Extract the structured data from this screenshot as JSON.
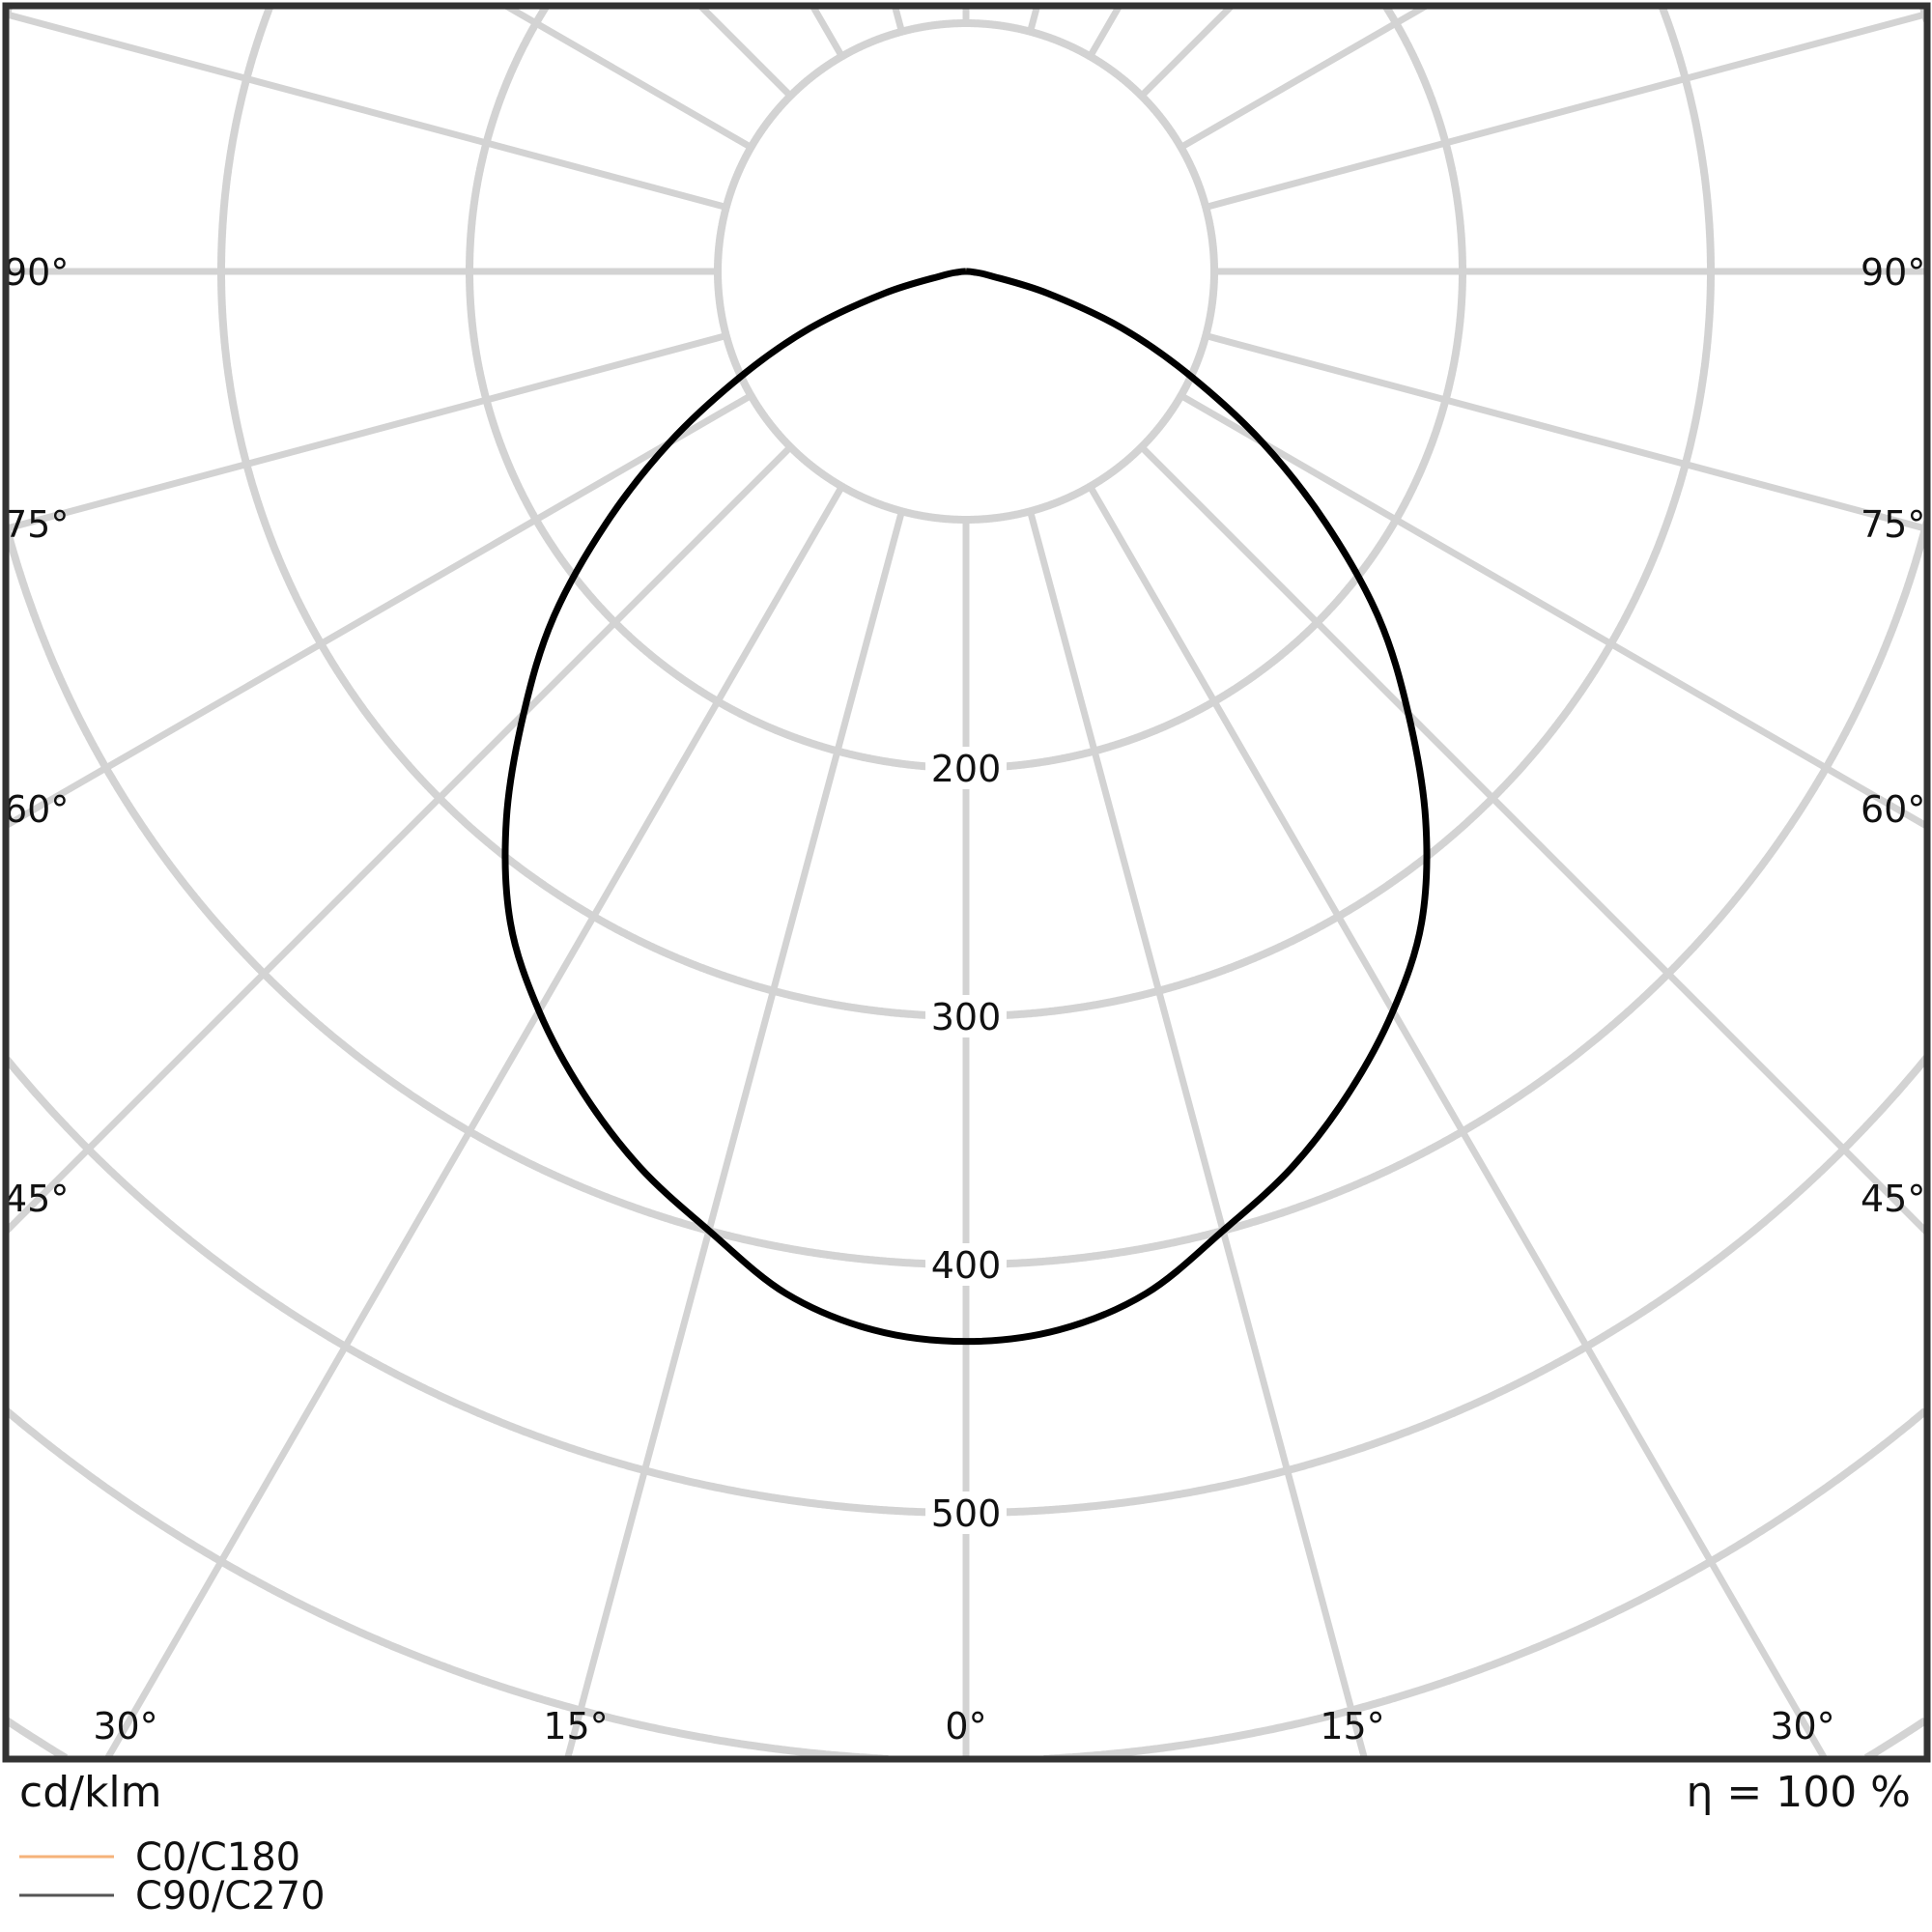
{
  "chart_data": {
    "type": "polar",
    "unit_label": "cd/klm",
    "efficiency_label": "η = 100 %",
    "radial_ticks": [
      100,
      200,
      300,
      400,
      500,
      600,
      700,
      800,
      900
    ],
    "radial_tick_labels": [
      "200",
      "300",
      "400",
      "500"
    ],
    "angle_step_deg": 15,
    "side_angle_labels": [
      "90°",
      "75°",
      "60°",
      "45°"
    ],
    "bottom_angle_labels": [
      "30°",
      "15°",
      "0°",
      "15°",
      "30°"
    ],
    "grid": true,
    "legend_placement": "bottom-left",
    "angles_deg": [
      0,
      5,
      10,
      15,
      20,
      25,
      30,
      35,
      40,
      45,
      50,
      55,
      60,
      65,
      70,
      75,
      80,
      85,
      90
    ],
    "series": [
      {
        "name": "C0/C180",
        "color": "#f5b27a",
        "values": [
          431,
          428,
          418,
          400,
          384,
          365,
          344,
          320,
          288,
          252,
          217,
          177,
          138,
          100,
          67,
          34,
          10,
          3,
          0
        ]
      },
      {
        "name": "C90/C270",
        "color": "#000000",
        "values": [
          431,
          428,
          418,
          400,
          384,
          365,
          344,
          320,
          288,
          252,
          217,
          177,
          138,
          100,
          67,
          34,
          10,
          3,
          0
        ]
      }
    ],
    "colors": {
      "grid": "#d3d3d3",
      "frame": "#333333"
    }
  }
}
